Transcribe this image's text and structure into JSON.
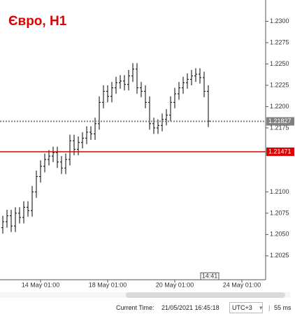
{
  "chart_data": {
    "type": "ohlc",
    "title": "Євро, H1",
    "color": "#000000",
    "categories": [
      null,
      null,
      null,
      null,
      null,
      null,
      null,
      null,
      null,
      "14 May 01:00",
      null,
      null,
      null,
      null,
      null,
      null,
      null,
      null,
      null,
      null,
      null,
      null,
      null,
      null,
      null,
      "18 May 01:00",
      null,
      null,
      null,
      null,
      null,
      null,
      null,
      null,
      null,
      null,
      null,
      null,
      null,
      null,
      null,
      "20 May 01:00",
      null,
      null,
      null,
      null,
      null,
      null,
      null,
      null,
      null,
      null,
      null,
      null,
      null,
      null,
      null,
      "24 May 01:00"
    ],
    "open": [
      1.2058,
      1.2065,
      1.2072,
      1.206,
      1.2075,
      1.207,
      1.2082,
      1.2078,
      1.21,
      1.2118,
      1.213,
      1.2138,
      1.2142,
      1.2146,
      1.2135,
      1.2128,
      1.2138,
      1.216,
      1.215,
      1.2158,
      1.2163,
      1.217,
      1.2168,
      1.218,
      1.2205,
      1.2218,
      1.2212,
      1.2222,
      1.2228,
      1.223,
      1.2226,
      1.2236,
      1.2244,
      1.2222,
      1.2218,
      1.2205,
      1.218,
      1.2175,
      1.2178,
      1.2185,
      1.219,
      1.2205,
      1.2215,
      1.2222,
      1.2228,
      1.2232,
      1.2236,
      1.2238,
      1.2234,
      1.2218,
      null,
      null,
      null,
      null,
      null,
      null,
      null,
      null
    ],
    "high": [
      1.2072,
      1.2079,
      1.2079,
      1.2082,
      1.2082,
      1.2089,
      1.2089,
      1.2107,
      1.2125,
      1.2137,
      1.2145,
      1.2149,
      1.2153,
      1.2153,
      1.2142,
      1.2145,
      1.2167,
      1.2167,
      1.2165,
      1.217,
      1.2177,
      1.2177,
      1.2187,
      1.2212,
      1.2225,
      1.2225,
      1.2229,
      1.2235,
      1.2237,
      1.2237,
      1.2243,
      1.2251,
      1.2251,
      1.2229,
      1.2225,
      1.2212,
      1.2187,
      1.2185,
      1.2192,
      1.2197,
      1.2212,
      1.2222,
      1.2229,
      1.2235,
      1.2239,
      1.2243,
      1.2245,
      1.2245,
      1.2241,
      1.2225,
      null,
      null,
      null,
      null,
      null,
      null,
      null,
      null
    ],
    "low": [
      1.2051,
      1.2058,
      1.2053,
      1.2053,
      1.2063,
      1.2063,
      1.2071,
      1.2071,
      1.2093,
      1.2111,
      1.2123,
      1.2131,
      1.2135,
      1.2128,
      1.2121,
      1.2121,
      1.2131,
      1.2143,
      1.2143,
      1.2151,
      1.2156,
      1.2161,
      1.2161,
      1.2173,
      1.2198,
      1.2205,
      1.2205,
      1.2215,
      1.2221,
      1.2219,
      1.2219,
      1.2229,
      1.2215,
      1.2211,
      1.2198,
      1.2173,
      1.2168,
      1.2168,
      1.2171,
      1.2178,
      1.2183,
      1.2198,
      1.2208,
      1.2215,
      1.2221,
      1.2225,
      1.2229,
      1.2227,
      1.2211,
      1.2176,
      null,
      null,
      null,
      null,
      null,
      null,
      null,
      null
    ],
    "close": [
      1.2065,
      1.2072,
      1.206,
      1.2075,
      1.207,
      1.2082,
      1.2078,
      1.21,
      1.2118,
      1.213,
      1.2138,
      1.2142,
      1.2146,
      1.2135,
      1.2128,
      1.2138,
      1.216,
      1.215,
      1.2158,
      1.2163,
      1.217,
      1.2168,
      1.218,
      1.2205,
      1.2218,
      1.2212,
      1.2222,
      1.2228,
      1.223,
      1.2226,
      1.2236,
      1.2244,
      1.2222,
      1.2218,
      1.2205,
      1.218,
      1.2175,
      1.2178,
      1.2185,
      1.219,
      1.2205,
      1.2215,
      1.2222,
      1.2228,
      1.2232,
      1.2236,
      1.2238,
      1.2234,
      1.2218,
      1.2183,
      null,
      null,
      null,
      null,
      null,
      null,
      null,
      null
    ],
    "ylim": [
      1.1997,
      1.2325
    ],
    "yticks": [
      {
        "value": 1.23,
        "label": "1.2300"
      },
      1.2275,
      {
        "value": 1.225,
        "label": "1.2250"
      },
      1.2225,
      {
        "value": 1.22,
        "label": "1.2200"
      },
      1.2175,
      {
        "value": 1.21,
        "label": "1.2100"
      },
      1.2075,
      {
        "value": 1.205,
        "label": "1.2050"
      },
      1.2025
    ],
    "price_lines": [
      {
        "value": 1.21827,
        "color": "#808080"
      },
      {
        "value": 1.21471,
        "color": "#e00000"
      }
    ],
    "crosshair_label": "14:41"
  },
  "status_bar": {
    "current_time_label": "Current Time:",
    "current_time": "21/05/2021 16:45:18",
    "timezone": "UTC+3",
    "latency": "55 ms"
  }
}
